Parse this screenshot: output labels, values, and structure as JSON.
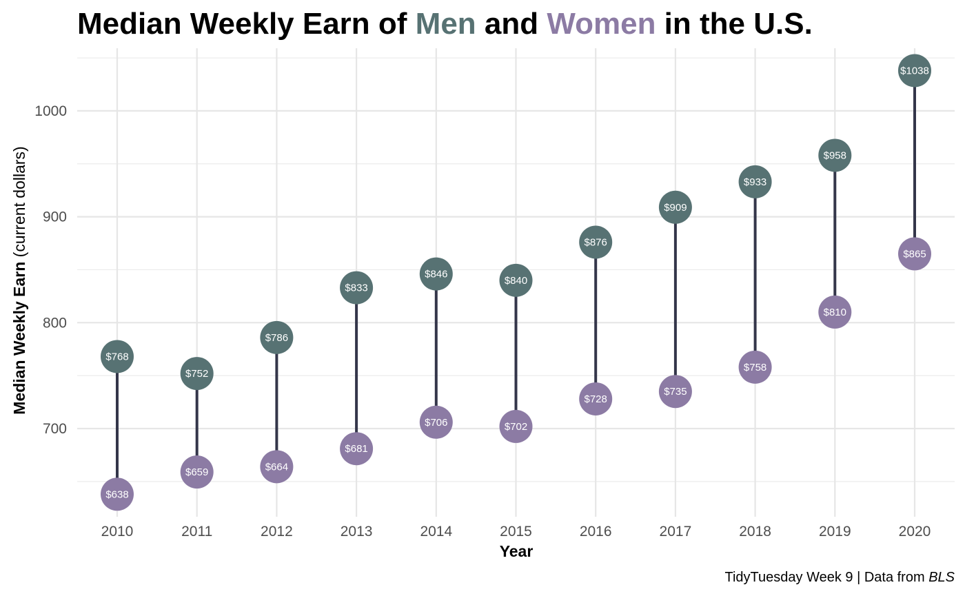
{
  "chart_data": {
    "type": "dumbbell",
    "title": {
      "part1": "Median Weekly Earn of ",
      "men": "Men",
      "part2": " and ",
      "women": "Women",
      "part3": " in the U.S."
    },
    "xlabel": "Year",
    "ylabel": {
      "bold": "Median Weekly Earn",
      "normal": "(current dollars)"
    },
    "caption": {
      "text": "TidyTuesday Week 9 | Data from ",
      "italic": "BLS"
    },
    "categories": [
      "2010",
      "2011",
      "2012",
      "2013",
      "2014",
      "2015",
      "2016",
      "2017",
      "2018",
      "2019",
      "2020"
    ],
    "series": [
      {
        "name": "Men",
        "color": "#577273",
        "values": [
          768,
          752,
          786,
          833,
          846,
          840,
          876,
          909,
          933,
          958,
          1038
        ],
        "labels": [
          "$768",
          "$752",
          "$786",
          "$833",
          "$846",
          "$840",
          "$876",
          "$909",
          "$933",
          "$958",
          "$1038"
        ]
      },
      {
        "name": "Women",
        "color": "#8c7ba4",
        "values": [
          638,
          659,
          664,
          681,
          706,
          702,
          728,
          735,
          758,
          810,
          865
        ],
        "labels": [
          "$638",
          "$659",
          "$664",
          "$681",
          "$706",
          "$702",
          "$728",
          "$735",
          "$758",
          "$810",
          "$865"
        ]
      }
    ],
    "segment_color": "#34364a",
    "yticks": [
      "700",
      "800",
      "900",
      "1000"
    ],
    "ytick_values": [
      700,
      800,
      900,
      1000
    ],
    "ylim": [
      622,
      1050
    ],
    "grid": true
  }
}
